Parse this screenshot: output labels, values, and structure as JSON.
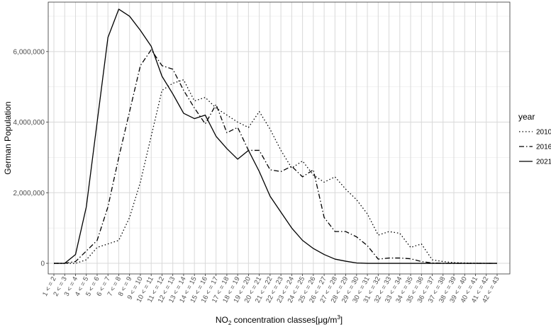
{
  "chart_data": {
    "type": "line",
    "xlabel": {
      "main": "NO",
      "sub": "2",
      "rest": " concentration classes[μg/m",
      "sup": "3",
      "end": "]"
    },
    "ylabel": "German Population",
    "ylim": [
      -300000,
      7400000
    ],
    "yticks": [
      0,
      2000000,
      4000000,
      6000000
    ],
    "ytick_labels": [
      "0",
      "2,000,000",
      "4,000,000",
      "6,000,000"
    ],
    "grid": true,
    "legend": {
      "title": "year",
      "position": "right"
    },
    "categories": [
      "1 < = 2",
      "2 < = 3",
      "3 < = 4",
      "4 < = 5",
      "5 < = 6",
      "6 < = 7",
      "7 < = 8",
      "8 < = 9",
      "9 < = 10",
      "10 < = 11",
      "11 < = 12",
      "12 < = 13",
      "13 < = 14",
      "14 < = 15",
      "15 < = 16",
      "16 < = 17",
      "17 < = 18",
      "18 < = 19",
      "19 < = 20",
      "20 < = 21",
      "21 < = 22",
      "22 < = 23",
      "23 < = 24",
      "24 < = 25",
      "25 < = 26",
      "26 < = 27",
      "27 < = 28",
      "28 < = 29",
      "29 < = 30",
      "30 < = 31",
      "31 < = 32",
      "32 < = 33",
      "33 < = 34",
      "34 < = 35",
      "35 < = 36",
      "36 < = 37",
      "37 < = 38",
      "38 < = 39",
      "39 < = 40",
      "40 < = 41",
      "41 < = 42",
      "42 < = 43"
    ],
    "series": [
      {
        "name": "2010",
        "dash": "1.5,3",
        "values": [
          0,
          0,
          0,
          100000,
          450000,
          550000,
          650000,
          1300000,
          2300000,
          3600000,
          4900000,
          5100000,
          5200000,
          4600000,
          4700000,
          4400000,
          4200000,
          4000000,
          3850000,
          4300000,
          3800000,
          3200000,
          2700000,
          2900000,
          2500000,
          2300000,
          2450000,
          2100000,
          1800000,
          1400000,
          800000,
          900000,
          850000,
          450000,
          550000,
          100000,
          50000,
          20000,
          10000,
          5000,
          0,
          0
        ]
      },
      {
        "name": "2016",
        "dash": "7,3,1.5,3",
        "values": [
          0,
          0,
          50000,
          350000,
          650000,
          1600000,
          3000000,
          4300000,
          5600000,
          6050000,
          5600000,
          5500000,
          4900000,
          4400000,
          3950000,
          4500000,
          3700000,
          3850000,
          3200000,
          3200000,
          2650000,
          2600000,
          2750000,
          2450000,
          2650000,
          1300000,
          900000,
          900000,
          750000,
          500000,
          120000,
          150000,
          150000,
          130000,
          50000,
          10000,
          0,
          0,
          0,
          0,
          0,
          0
        ]
      },
      {
        "name": "2021",
        "dash": "",
        "values": [
          0,
          0,
          250000,
          1600000,
          4000000,
          6400000,
          7200000,
          7000000,
          6600000,
          6150000,
          5300000,
          4800000,
          4250000,
          4100000,
          4200000,
          3600000,
          3250000,
          2950000,
          3200000,
          2600000,
          1900000,
          1450000,
          1000000,
          650000,
          420000,
          250000,
          120000,
          60000,
          10000,
          0,
          0,
          0,
          0,
          0,
          0,
          0,
          0,
          0,
          0,
          0,
          0,
          0
        ]
      }
    ]
  }
}
